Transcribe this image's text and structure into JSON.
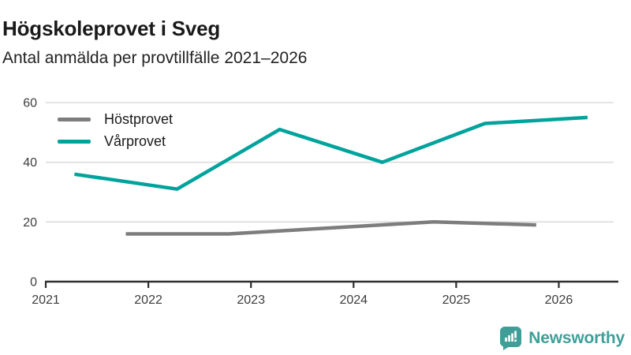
{
  "chart_data": {
    "type": "line",
    "title": "Högskoleprovet i Sveg",
    "subtitle": "Antal anmälda per provtillfälle 2021–2026",
    "series": [
      {
        "name": "Höstprovet",
        "color": "#7d7d7d",
        "x": [
          2021.78,
          2022.78,
          2023.78,
          2024.78,
          2025.78
        ],
        "values": [
          16,
          16,
          18,
          20,
          19
        ]
      },
      {
        "name": "Vårprovet",
        "color": "#00a39c",
        "x": [
          2021.28,
          2022.28,
          2023.28,
          2024.28,
          2025.28,
          2026.28
        ],
        "values": [
          36,
          31,
          51,
          40,
          53,
          55
        ]
      }
    ],
    "xticks": [
      2021,
      2022,
      2023,
      2024,
      2025,
      2026
    ],
    "yticks": [
      0,
      20,
      40,
      60
    ],
    "xlim": [
      2021,
      2026.55
    ],
    "ylim": [
      0,
      60
    ],
    "grid": "horizontal",
    "legend_position": "top-left-inside"
  },
  "colors": {
    "gridline": "#dcdcdc",
    "axis": "#2e2e2e",
    "tick_label": "#3d3d3d",
    "title": "#1a1a1a",
    "logo_teal": "#3f9f98"
  },
  "logo": {
    "text": "Newsworthy",
    "icon": "bar-chart-speech-bubble-icon"
  }
}
